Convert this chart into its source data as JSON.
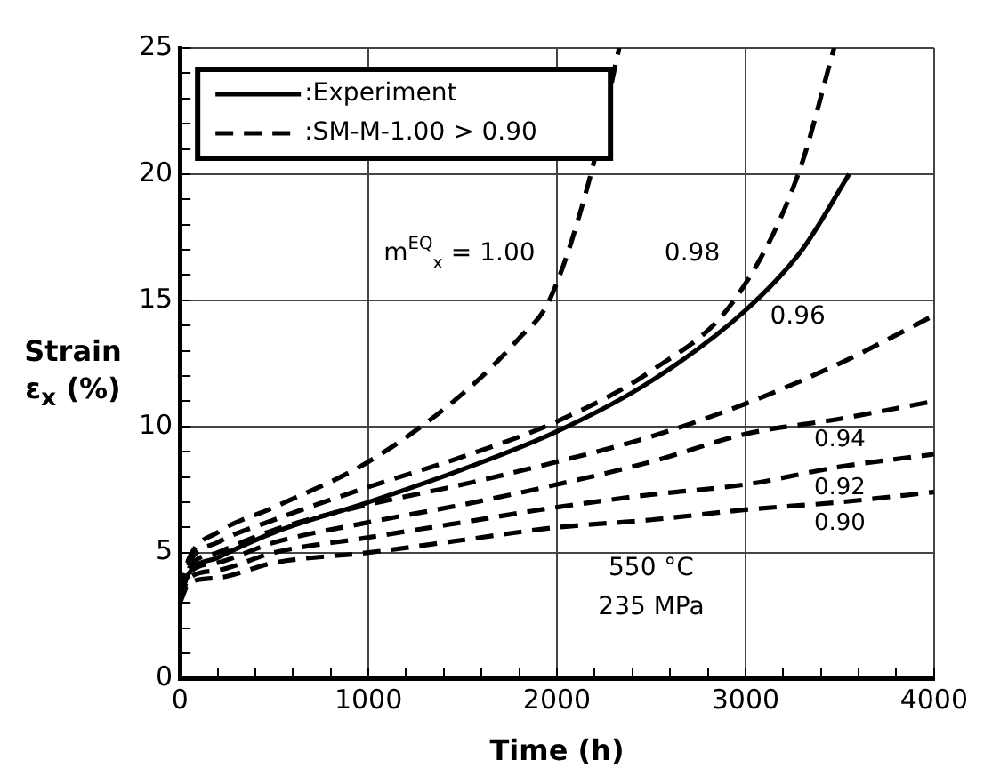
{
  "chart_data": {
    "type": "line",
    "xlabel": "Time (h)",
    "ylabel": "Strain ε$_{x}$ (%)",
    "xlim": [
      0,
      4000
    ],
    "ylim": [
      0,
      25
    ],
    "xticks": [
      0,
      {
        "value": 200,
        "label": null
      },
      {
        "value": 400,
        "label": null
      },
      {
        "value": 600,
        "label": null
      },
      {
        "value": 800,
        "label": null
      },
      1000,
      {
        "value": 1200,
        "label": null
      },
      {
        "value": 1400,
        "label": null
      },
      {
        "value": 1600,
        "label": null
      },
      {
        "value": 1800,
        "label": null
      },
      2000,
      {
        "value": 2200,
        "label": null
      },
      {
        "value": 2400,
        "label": null
      },
      {
        "value": 2600,
        "label": null
      },
      {
        "value": 2800,
        "label": null
      },
      3000,
      {
        "value": 3200,
        "label": null
      },
      {
        "value": 3400,
        "label": null
      },
      {
        "value": 3600,
        "label": null
      },
      {
        "value": 3800,
        "label": null
      },
      4000
    ],
    "yticks": [
      0,
      {
        "value": 1,
        "label": null
      },
      {
        "value": 2,
        "label": null
      },
      {
        "value": 3,
        "label": null
      },
      {
        "value": 4,
        "label": null
      },
      5,
      {
        "value": 6,
        "label": null
      },
      {
        "value": 7,
        "label": null
      },
      {
        "value": 8,
        "label": null
      },
      {
        "value": 9,
        "label": null
      },
      10,
      {
        "value": 11,
        "label": null
      },
      {
        "value": 12,
        "label": null
      },
      {
        "value": 13,
        "label": null
      },
      {
        "value": 14,
        "label": null
      },
      15,
      {
        "value": 16,
        "label": null
      },
      {
        "value": 17,
        "label": null
      },
      {
        "value": 18,
        "label": null
      },
      {
        "value": 19,
        "label": null
      },
      20,
      {
        "value": 21,
        "label": null
      },
      {
        "value": 22,
        "label": null
      },
      {
        "value": 23,
        "label": null
      },
      {
        "value": 24,
        "label": null
      },
      25
    ],
    "grid": true,
    "legend": "top left",
    "marker": "none",
    "series": [
      {
        "name": ":Experiment",
        "color": "#000000",
        "line_style": "solid",
        "x": [
          0,
          50,
          200,
          500,
          1000,
          1500,
          2000,
          2500,
          3000,
          3300,
          3550
        ],
        "values": [
          3.3,
          4.2,
          4.8,
          5.8,
          7.0,
          8.3,
          9.8,
          11.8,
          14.6,
          17,
          20
        ]
      },
      {
        "name": ":SM-M-1.00 > 0.90",
        "color": "#000000",
        "line_style": "dashed",
        "x": [
          0,
          50,
          200,
          500,
          1000,
          1500,
          1800,
          1960,
          2180,
          2330
        ],
        "values": [
          3.5,
          4.8,
          5.8,
          6.8,
          8.6,
          11.3,
          13.5,
          15,
          20,
          25
        ]
      },
      {
        "color": "#000000",
        "line_style": "dashed",
        "x": [
          0,
          50,
          200,
          500,
          1000,
          1500,
          2000,
          2500,
          2940,
          3280,
          3470
        ],
        "values": [
          3.4,
          4.6,
          5.4,
          6.3,
          7.6,
          8.8,
          10.2,
          12.2,
          15,
          20,
          25
        ]
      },
      {
        "color": "#000000",
        "line_style": "dashed",
        "x": [
          0,
          50,
          200,
          500,
          1000,
          1500,
          2000,
          2500,
          3000,
          3500,
          4000
        ],
        "values": [
          3.3,
          4.4,
          5.0,
          5.9,
          6.9,
          7.7,
          8.6,
          9.6,
          10.9,
          12.5,
          14.4
        ]
      },
      {
        "color": "#000000",
        "line_style": "dashed",
        "x": [
          0,
          50,
          200,
          500,
          1000,
          1500,
          2000,
          2500,
          3000,
          3500,
          4000
        ],
        "values": [
          3.2,
          4.2,
          4.6,
          5.4,
          6.2,
          6.9,
          7.7,
          8.6,
          9.7,
          10.3,
          11.0
        ]
      },
      {
        "color": "#000000",
        "line_style": "dashed",
        "x": [
          0,
          50,
          200,
          500,
          1000,
          1500,
          2000,
          2500,
          3000,
          3500,
          4000
        ],
        "values": [
          3.1,
          4.0,
          4.3,
          5.0,
          5.6,
          6.2,
          6.8,
          7.3,
          7.7,
          8.4,
          8.9
        ]
      },
      {
        "color": "#000000",
        "line_style": "dashed",
        "x": [
          0,
          50,
          200,
          500,
          1000,
          1500,
          2000,
          2500,
          3000,
          3500,
          4000
        ],
        "values": [
          3.0,
          3.8,
          4.0,
          4.6,
          5.0,
          5.5,
          6.0,
          6.3,
          6.7,
          7.0,
          7.4
        ]
      }
    ],
    "annotations": [
      {
        "text": "m$^{EQ}$$_{x}$ = 1.00",
        "x": 1960,
        "y": 15
      },
      {
        "text": "0.98",
        "x": 2940,
        "y": 15
      },
      {
        "text": "0.96",
        "x": 3500,
        "y": 12.5
      },
      {
        "text": "0.94",
        "x": 3500,
        "y": 10.3
      },
      {
        "text": "0.92",
        "x": 3500,
        "y": 8.4
      },
      {
        "text": "0.90",
        "x": 3500,
        "y": 7.0
      },
      "550 °C",
      "235 MPa"
    ]
  }
}
